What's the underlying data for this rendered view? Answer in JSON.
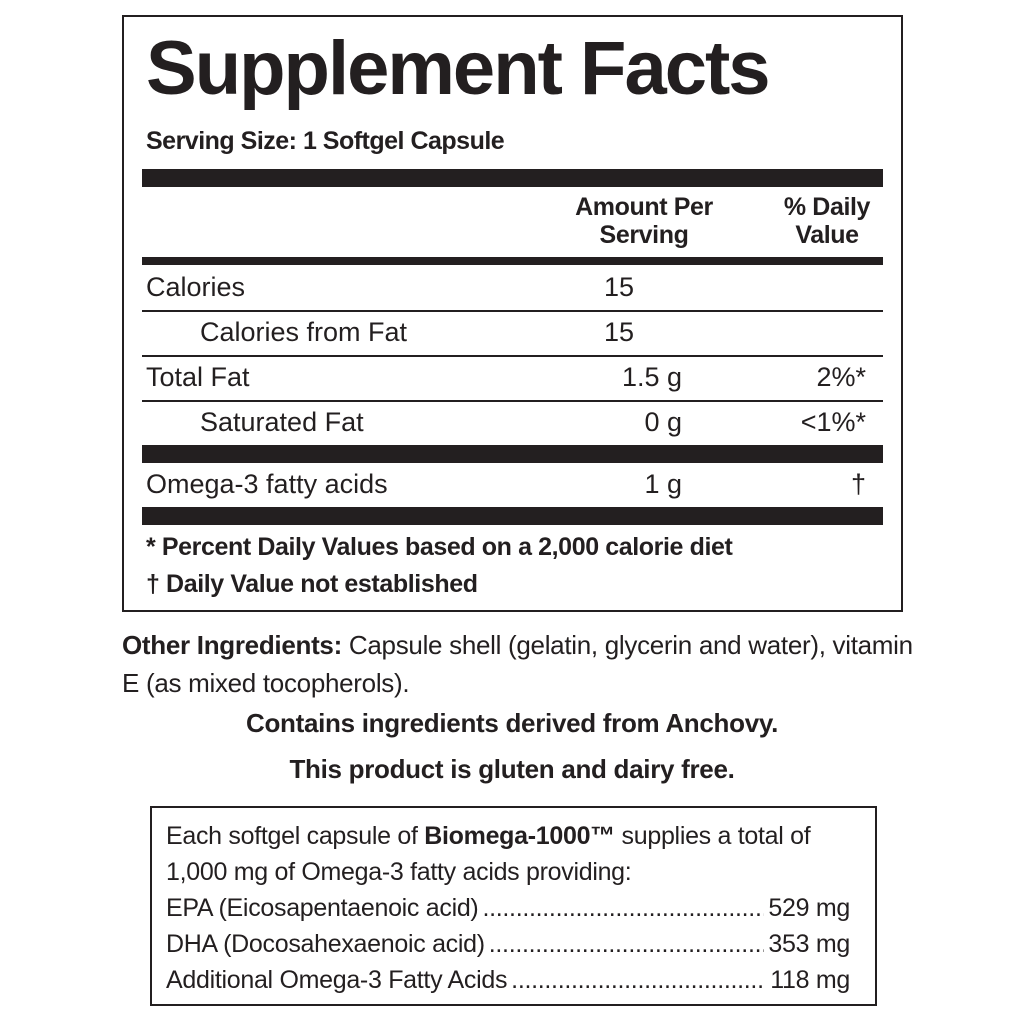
{
  "title": "Supplement Facts",
  "serving_size": "Serving Size: 1 Softgel Capsule",
  "table": {
    "header": {
      "amount": "Amount Per Serving",
      "daily_value": "% Daily Value"
    },
    "rows": [
      {
        "name": "Calories",
        "amount": "15"
      },
      {
        "name": "Calories from Fat",
        "amount": "15"
      },
      {
        "name": "Total Fat",
        "amount": "1.5 g",
        "daily_value": "2%*"
      },
      {
        "name": "Saturated Fat",
        "amount": "0 g",
        "daily_value": "<1%*"
      },
      {
        "name": "Omega-3 fatty acids",
        "amount": "1 g",
        "daily_value": "†"
      }
    ]
  },
  "footnotes": [
    "* Percent Daily Values based on a 2,000 calorie diet",
    "† Daily Value not established"
  ],
  "other_ingredients": {
    "label": "Other Ingredients:",
    "text": "Capsule shell (gelatin, glycerin and water), vitamin E (as mixed tocopherols)."
  },
  "statements": [
    "Contains ingredients derived from Anchovy.",
    "This product is gluten and dairy free."
  ],
  "info_box": {
    "intro_before": "Each softgel capsule of",
    "product": "Biomega-1000™",
    "intro_after": "supplies a total of 1,000 mg of Omega-3 fatty acids providing:",
    "items": [
      {
        "name": "EPA (Eicosapentaenoic acid)",
        "amount": "529 mg"
      },
      {
        "name": "DHA (Docosahexaenoic acid)",
        "amount": "353 mg"
      },
      {
        "name": "Additional Omega-3 Fatty Acids",
        "amount": "118 mg"
      }
    ]
  }
}
